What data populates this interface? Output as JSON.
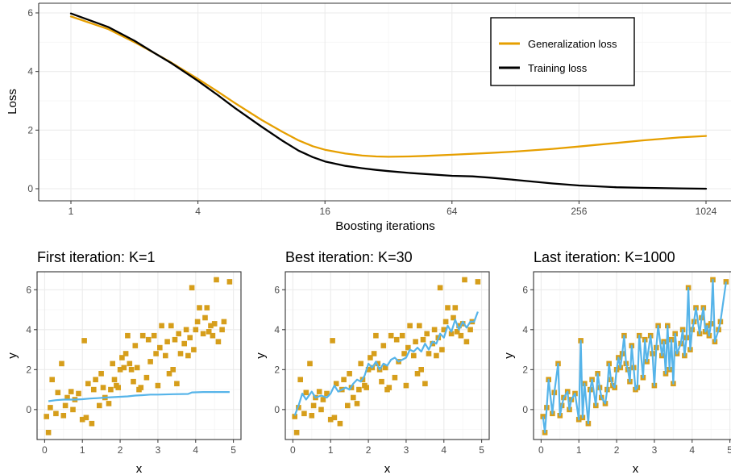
{
  "colors": {
    "generalization": "#E69F00",
    "training": "#000000",
    "fit_line": "#56B4E9",
    "points": "#D69E1B",
    "grid_major": "#EBEBEB",
    "grid_minor": "#F5F5F5",
    "axis_text": "#4D4D4D",
    "border": "#333333"
  },
  "chart_data": [
    {
      "type": "line",
      "title": "",
      "xlabel": "Boosting iterations",
      "ylabel": "Loss",
      "x_scale": "log2",
      "xlim": [
        1,
        1024
      ],
      "ylim": [
        0,
        6
      ],
      "x_ticks": [
        1,
        4,
        16,
        64,
        256,
        1024
      ],
      "x_tick_labels": [
        "1",
        "4",
        "16",
        "64",
        "256",
        "1024"
      ],
      "y_ticks": [
        0,
        2,
        4,
        6
      ],
      "y_tick_labels": [
        "0",
        "2",
        "4",
        "6"
      ],
      "grid": true,
      "legend_position": "top-right",
      "legend": [
        "Generalization loss",
        "Training loss"
      ],
      "series": [
        {
          "name": "Generalization loss",
          "color": "#E69F00",
          "x": [
            1,
            1.5,
            2,
            2.5,
            3,
            4,
            5,
            6,
            8,
            10,
            12,
            14,
            16,
            20,
            24,
            28,
            32,
            40,
            48,
            64,
            96,
            128,
            192,
            256,
            384,
            512,
            768,
            1024
          ],
          "y": [
            5.88,
            5.45,
            5.0,
            4.62,
            4.3,
            3.75,
            3.3,
            2.92,
            2.35,
            1.95,
            1.65,
            1.45,
            1.33,
            1.2,
            1.13,
            1.1,
            1.09,
            1.1,
            1.12,
            1.16,
            1.22,
            1.27,
            1.36,
            1.44,
            1.56,
            1.65,
            1.75,
            1.8
          ]
        },
        {
          "name": "Training loss",
          "color": "#000000",
          "x": [
            1,
            1.5,
            2,
            2.5,
            3,
            4,
            5,
            6,
            8,
            10,
            12,
            14,
            16,
            20,
            24,
            28,
            32,
            40,
            48,
            64,
            80,
            96,
            128,
            192,
            256,
            384,
            512,
            768,
            1024
          ],
          "y": [
            5.98,
            5.52,
            5.05,
            4.62,
            4.28,
            3.68,
            3.18,
            2.75,
            2.12,
            1.65,
            1.3,
            1.08,
            0.93,
            0.78,
            0.7,
            0.64,
            0.6,
            0.54,
            0.5,
            0.44,
            0.42,
            0.38,
            0.3,
            0.18,
            0.11,
            0.05,
            0.03,
            0.01,
            0.0
          ]
        }
      ]
    },
    {
      "type": "scatter",
      "title": "First iteration: K=1",
      "xlabel": "x",
      "ylabel": "y",
      "xlim": [
        -0.2,
        5.2
      ],
      "ylim": [
        -1.5,
        6.9
      ],
      "x_ticks": [
        0,
        1,
        2,
        3,
        4,
        5
      ],
      "y_ticks": [
        0,
        2,
        4,
        6
      ],
      "grid": true,
      "fit_line": {
        "x": [
          0.1,
          0.3,
          0.5,
          0.8,
          1.0,
          1.2,
          1.4,
          1.6,
          1.8,
          2.0,
          2.2,
          2.4,
          2.6,
          2.8,
          3.0,
          3.4,
          3.8,
          3.9,
          4.2,
          4.6,
          4.9
        ],
        "y": [
          0.42,
          0.47,
          0.5,
          0.5,
          0.52,
          0.55,
          0.57,
          0.6,
          0.62,
          0.64,
          0.66,
          0.7,
          0.72,
          0.75,
          0.75,
          0.77,
          0.78,
          0.86,
          0.88,
          0.88,
          0.88
        ]
      }
    },
    {
      "type": "scatter",
      "title": "Best iteration: K=30",
      "xlabel": "x",
      "ylabel": "y",
      "xlim": [
        -0.2,
        5.2
      ],
      "ylim": [
        -1.5,
        6.9
      ],
      "x_ticks": [
        0,
        1,
        2,
        3,
        4,
        5
      ],
      "y_ticks": [
        0,
        2,
        4,
        6
      ],
      "grid": true,
      "fit_line": {
        "x": [
          0.05,
          0.15,
          0.25,
          0.35,
          0.5,
          0.6,
          0.75,
          0.9,
          1.0,
          1.1,
          1.2,
          1.3,
          1.4,
          1.5,
          1.6,
          1.7,
          1.8,
          1.9,
          2.0,
          2.1,
          2.2,
          2.3,
          2.4,
          2.5,
          2.6,
          2.7,
          2.8,
          2.9,
          3.0,
          3.1,
          3.2,
          3.3,
          3.4,
          3.5,
          3.6,
          3.7,
          3.8,
          3.9,
          4.0,
          4.1,
          4.2,
          4.3,
          4.4,
          4.5,
          4.6,
          4.7,
          4.8,
          4.9
        ],
        "y": [
          -0.3,
          0.2,
          0.8,
          0.5,
          0.9,
          0.6,
          0.7,
          0.6,
          0.8,
          1.2,
          0.9,
          1.0,
          1.1,
          1.0,
          1.3,
          1.5,
          1.4,
          1.7,
          2.3,
          2.1,
          2.4,
          2.0,
          2.3,
          2.2,
          2.5,
          2.6,
          2.4,
          2.5,
          2.6,
          3.0,
          2.9,
          3.1,
          2.9,
          3.3,
          3.0,
          3.4,
          3.3,
          3.8,
          3.6,
          4.2,
          3.9,
          4.5,
          4.0,
          4.4,
          4.1,
          4.4,
          4.4,
          4.9
        ]
      }
    },
    {
      "type": "scatter",
      "title": "Last iteration: K=1000",
      "xlabel": "x",
      "ylabel": "y",
      "xlim": [
        -0.2,
        5.2
      ],
      "ylim": [
        -1.5,
        6.9
      ],
      "x_ticks": [
        0,
        1,
        2,
        3,
        4,
        5
      ],
      "y_ticks": [
        0,
        2,
        4,
        6
      ],
      "grid": true,
      "fit_line": "interpolates data points"
    }
  ],
  "scatter_points": {
    "x": [
      0.05,
      0.1,
      0.15,
      0.2,
      0.3,
      0.35,
      0.45,
      0.5,
      0.55,
      0.6,
      0.7,
      0.75,
      0.8,
      0.9,
      1.0,
      1.05,
      1.1,
      1.15,
      1.25,
      1.3,
      1.35,
      1.45,
      1.5,
      1.55,
      1.6,
      1.7,
      1.75,
      1.8,
      1.85,
      1.9,
      1.95,
      2.0,
      2.05,
      2.1,
      2.15,
      2.2,
      2.25,
      2.3,
      2.35,
      2.4,
      2.45,
      2.5,
      2.55,
      2.6,
      2.7,
      2.75,
      2.8,
      2.9,
      2.95,
      3.0,
      3.05,
      3.1,
      3.2,
      3.25,
      3.3,
      3.35,
      3.4,
      3.45,
      3.5,
      3.55,
      3.6,
      3.7,
      3.75,
      3.8,
      3.85,
      3.9,
      3.95,
      4.0,
      4.05,
      4.1,
      4.2,
      4.25,
      4.3,
      4.35,
      4.4,
      4.45,
      4.5,
      4.55,
      4.6,
      4.7,
      4.75,
      4.9
    ],
    "y": [
      -0.35,
      -1.15,
      0.1,
      1.5,
      -0.2,
      0.85,
      2.3,
      -0.3,
      0.2,
      0.6,
      0.9,
      0.0,
      0.5,
      0.8,
      -0.5,
      3.45,
      -0.4,
      1.3,
      -0.7,
      1.0,
      1.5,
      0.2,
      1.8,
      1.1,
      0.6,
      0.3,
      1.0,
      2.3,
      1.5,
      1.2,
      1.1,
      2.0,
      2.6,
      2.1,
      2.8,
      3.7,
      2.3,
      2.0,
      1.4,
      3.2,
      2.1,
      1.0,
      1.1,
      3.7,
      1.6,
      3.5,
      2.4,
      3.7,
      2.8,
      1.2,
      3.1,
      4.2,
      2.7,
      3.4,
      1.8,
      4.2,
      2.0,
      3.5,
      1.3,
      3.8,
      2.8,
      3.3,
      4.0,
      2.7,
      3.6,
      6.1,
      3.0,
      4.0,
      4.4,
      5.1,
      3.8,
      4.6,
      5.1,
      3.9,
      4.2,
      3.7,
      4.3,
      6.5,
      3.4,
      4.0,
      4.4,
      6.4
    ]
  }
}
